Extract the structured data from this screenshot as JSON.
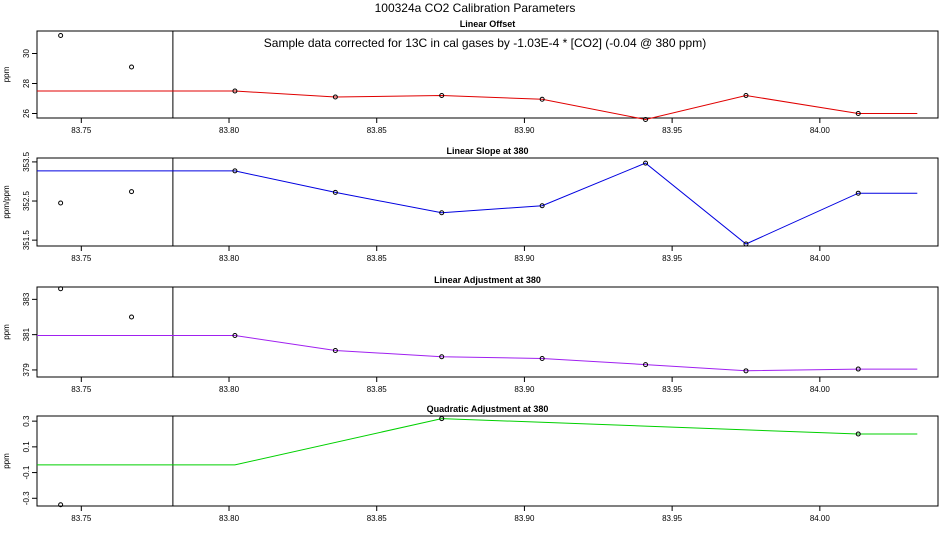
{
  "figure": {
    "title": "100324a   CO2 Calibration Parameters",
    "annotation": "Sample data corrected for 13C in cal gases by -1.03E-4 * [CO2] (-0.04 @ 380 ppm)"
  },
  "colors": {
    "axis": "#000000",
    "vline": "#000000",
    "panel1_line": "#e00000",
    "panel2_line": "#0000e0",
    "panel3_line": "#a020f0",
    "panel4_line": "#00d000"
  },
  "chart_data": [
    {
      "type": "line",
      "title": "Linear Offset",
      "xlabel": "",
      "ylabel": "ppm",
      "xlim": [
        83.735,
        84.04
      ],
      "ylim": [
        25.7,
        31.5
      ],
      "xticks": [
        "83.75",
        "83.80",
        "83.85",
        "83.90",
        "83.95",
        "84.00"
      ],
      "xtick_values": [
        83.75,
        83.8,
        83.85,
        83.9,
        83.95,
        84.0
      ],
      "yticks": [
        "26",
        "28",
        "30"
      ],
      "ytick_values": [
        26,
        28,
        30
      ],
      "vline_x": 83.781,
      "line": {
        "x": [
          83.735,
          83.802,
          83.836,
          83.872,
          83.906,
          83.941,
          83.975,
          84.013,
          84.033
        ],
        "y": [
          27.5,
          27.5,
          27.1,
          27.2,
          26.95,
          25.6,
          27.2,
          26.0,
          26.0
        ]
      },
      "points": {
        "x": [
          83.743,
          83.767,
          83.802,
          83.836,
          83.872,
          83.906,
          83.941,
          83.975,
          84.013
        ],
        "y": [
          31.2,
          29.1,
          27.5,
          27.1,
          27.2,
          26.95,
          25.6,
          27.2,
          26.0
        ]
      },
      "grid": false
    },
    {
      "type": "line",
      "title": "Linear Slope at 380",
      "xlabel": "",
      "ylabel": "ppm/ppm",
      "xlim": [
        83.735,
        84.04
      ],
      "ylim": [
        351.35,
        353.6
      ],
      "xticks": [
        "83.75",
        "83.80",
        "83.85",
        "83.90",
        "83.95",
        "84.00"
      ],
      "xtick_values": [
        83.75,
        83.8,
        83.85,
        83.9,
        83.95,
        84.0
      ],
      "yticks": [
        "351.5",
        "352.5",
        "353.5"
      ],
      "ytick_values": [
        351.5,
        352.5,
        353.5
      ],
      "vline_x": 83.781,
      "line": {
        "x": [
          83.735,
          83.802,
          83.836,
          83.872,
          83.906,
          83.941,
          83.975,
          84.013,
          84.033
        ],
        "y": [
          353.27,
          353.27,
          352.72,
          352.2,
          352.38,
          353.47,
          351.4,
          352.7,
          352.7
        ]
      },
      "points": {
        "x": [
          83.743,
          83.767,
          83.802,
          83.836,
          83.872,
          83.906,
          83.941,
          83.975,
          84.013
        ],
        "y": [
          352.45,
          352.74,
          353.27,
          352.72,
          352.2,
          352.38,
          353.47,
          351.4,
          352.7
        ]
      },
      "grid": false
    },
    {
      "type": "line",
      "title": "Linear Adjustment at 380",
      "xlabel": "",
      "ylabel": "ppm",
      "xlim": [
        83.735,
        84.04
      ],
      "ylim": [
        378.6,
        383.7
      ],
      "xticks": [
        "83.75",
        "83.80",
        "83.85",
        "83.90",
        "83.95",
        "84.00"
      ],
      "xtick_values": [
        83.75,
        83.8,
        83.85,
        83.9,
        83.95,
        84.0
      ],
      "yticks": [
        "379",
        "381",
        "383"
      ],
      "ytick_values": [
        379,
        381,
        383
      ],
      "vline_x": 83.781,
      "line": {
        "x": [
          83.735,
          83.802,
          83.836,
          83.872,
          83.906,
          83.941,
          83.975,
          84.013,
          84.033
        ],
        "y": [
          380.95,
          380.95,
          380.1,
          379.75,
          379.65,
          379.3,
          378.95,
          379.05,
          379.05
        ]
      },
      "points": {
        "x": [
          83.743,
          83.767,
          83.802,
          83.836,
          83.872,
          83.906,
          83.941,
          83.975,
          84.013
        ],
        "y": [
          383.6,
          382.0,
          380.95,
          380.1,
          379.75,
          379.65,
          379.3,
          378.95,
          379.05
        ]
      },
      "grid": false
    },
    {
      "type": "line",
      "title": "Quadratic Adjustment at 380",
      "xlabel": "",
      "ylabel": "ppm",
      "xlim": [
        83.735,
        84.04
      ],
      "ylim": [
        -0.36,
        0.34
      ],
      "xticks": [
        "83.75",
        "83.80",
        "83.85",
        "83.90",
        "83.95",
        "84.00"
      ],
      "xtick_values": [
        83.75,
        83.8,
        83.85,
        83.9,
        83.95,
        84.0
      ],
      "yticks": [
        "-0.3",
        "-0.1",
        "0.1",
        "0.3"
      ],
      "ytick_values": [
        -0.3,
        -0.1,
        0.1,
        0.3
      ],
      "vline_x": 83.781,
      "line": {
        "x": [
          83.735,
          83.802,
          83.872,
          84.013,
          84.033
        ],
        "y": [
          -0.04,
          -0.04,
          0.32,
          0.2,
          0.2
        ]
      },
      "points": {
        "x": [
          83.743,
          83.872,
          84.013
        ],
        "y": [
          -0.35,
          0.32,
          0.2
        ]
      },
      "grid": false
    }
  ]
}
